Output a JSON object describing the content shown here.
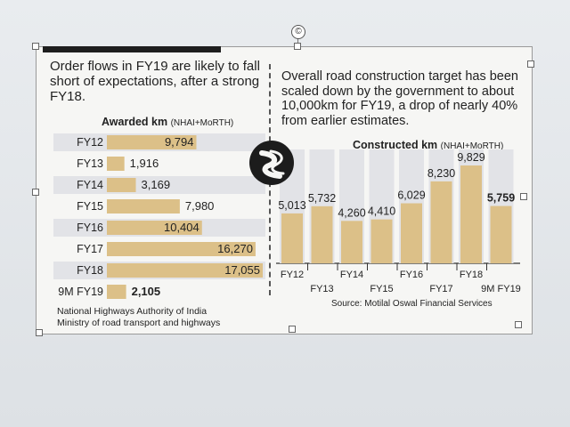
{
  "left": {
    "headline": "Order flows in FY19 are likely to fall short of expectations, after a strong FY18.",
    "chart_title": "Awarded km",
    "chart_title_sub": "(NHAI+MoRTH)",
    "source": [
      "National Highways Authority of India",
      "Ministry of road transport and highways"
    ]
  },
  "right": {
    "headline": "Overall road construction target has been scaled down by the government to about 10,000km for FY19, a drop of nearly 40% from earlier estimates.",
    "chart_title": "Constructed km",
    "chart_title_sub": "(NHAI+MoRTH)",
    "source": "Source: Motilal Oswal Financial Services"
  },
  "rotate_handle_glyph": "©",
  "colors": {
    "bar": "#dcc088",
    "row_shade": "#e2e3e7",
    "card": "#f6f6f4"
  },
  "chart_data": [
    {
      "type": "bar",
      "orientation": "horizontal",
      "title": "Awarded km (NHAI+MoRTH)",
      "categories": [
        "FY12",
        "FY13",
        "FY14",
        "FY15",
        "FY16",
        "FY17",
        "FY18",
        "9M FY19"
      ],
      "values": [
        9794,
        1916,
        3169,
        7980,
        10404,
        16270,
        17055,
        2105
      ],
      "value_labels": [
        "9,794",
        "1,916",
        "3,169",
        "7,980",
        "10,404",
        "16,270",
        "17,055",
        "2,105"
      ],
      "xlim": [
        0,
        17055
      ]
    },
    {
      "type": "bar",
      "orientation": "vertical",
      "title": "Constructed km (NHAI+MoRTH)",
      "categories": [
        "FY12",
        "FY13",
        "FY14",
        "FY15",
        "FY16",
        "FY17",
        "FY18",
        "9M FY19"
      ],
      "values": [
        5013,
        5732,
        4260,
        4410,
        6029,
        8230,
        9829,
        5759
      ],
      "value_labels": [
        "5,013",
        "5,732",
        "4,260",
        "4,410",
        "6,029",
        "8,230",
        "9,829",
        "5,759"
      ],
      "ylim": [
        0,
        9829
      ]
    }
  ]
}
